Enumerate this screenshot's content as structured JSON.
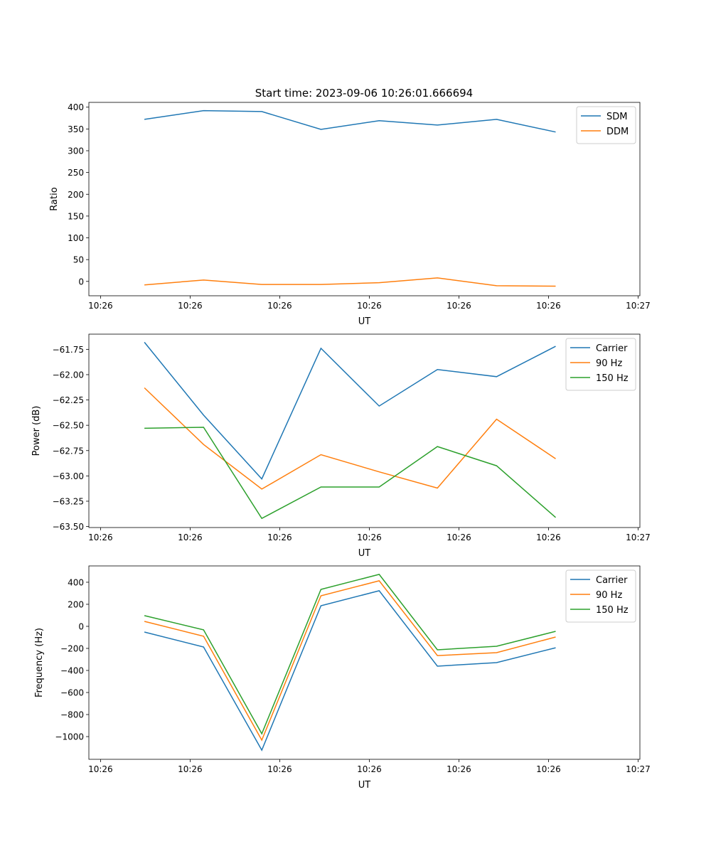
{
  "figure_title": "Start time: 2023-09-06 10:26:01.666694",
  "colors": {
    "c0": "#1f77b4",
    "c1": "#ff7f0e",
    "c2": "#2ca02c"
  },
  "chart_data": [
    {
      "type": "line",
      "title": "Start time: 2023-09-06 10:26:01.666694",
      "xlabel": "UT",
      "ylabel": "Ratio",
      "x_unit": "seconds after 10:26:00",
      "x": [
        4.9,
        11.5,
        18.0,
        24.6,
        31.1,
        37.6,
        44.2,
        50.8
      ],
      "xlim": [
        -1.3,
        60.2
      ],
      "xticks": [
        0,
        10,
        20,
        30,
        40,
        50,
        60
      ],
      "xtick_labels": [
        "10:26",
        "10:26",
        "10:26",
        "10:26",
        "10:26",
        "10:26",
        "10:27"
      ],
      "ylim": [
        -33,
        411
      ],
      "yticks": [
        0,
        50,
        100,
        150,
        200,
        250,
        300,
        350,
        400
      ],
      "ytick_labels": [
        "0",
        "50",
        "100",
        "150",
        "200",
        "250",
        "300",
        "350",
        "400"
      ],
      "legend": "top-right",
      "grid": false,
      "series": [
        {
          "name": "SDM",
          "color": "#1f77b4",
          "values": [
            372,
            392,
            390,
            349,
            369,
            359,
            372,
            343
          ]
        },
        {
          "name": "DDM",
          "color": "#ff7f0e",
          "values": [
            -8,
            3,
            -7,
            -7,
            -3,
            8,
            -10,
            -11
          ]
        }
      ]
    },
    {
      "type": "line",
      "xlabel": "UT",
      "ylabel": "Power (dB)",
      "x_unit": "seconds after 10:26:00",
      "x": [
        4.9,
        11.5,
        18.0,
        24.6,
        31.1,
        37.6,
        44.2,
        50.8
      ],
      "xlim": [
        -1.3,
        60.2
      ],
      "xticks": [
        0,
        10,
        20,
        30,
        40,
        50,
        60
      ],
      "xtick_labels": [
        "10:26",
        "10:26",
        "10:26",
        "10:26",
        "10:26",
        "10:26",
        "10:27"
      ],
      "ylim": [
        -63.51,
        -61.6
      ],
      "yticks": [
        -63.5,
        -63.25,
        -63.0,
        -62.75,
        -62.5,
        -62.25,
        -62.0,
        -61.75
      ],
      "ytick_labels": [
        "−63.50",
        "−63.25",
        "−63.00",
        "−62.75",
        "−62.50",
        "−62.25",
        "−62.00",
        "−61.75"
      ],
      "legend": "top-right",
      "grid": false,
      "series": [
        {
          "name": "Carrier",
          "color": "#1f77b4",
          "values": [
            -61.68,
            -62.4,
            -63.03,
            -61.74,
            -62.31,
            -61.95,
            -62.02,
            -61.72
          ]
        },
        {
          "name": "90 Hz",
          "color": "#ff7f0e",
          "values": [
            -62.13,
            -62.69,
            -63.13,
            -62.79,
            -62.96,
            -63.12,
            -62.44,
            -62.83
          ]
        },
        {
          "name": "150 Hz",
          "color": "#2ca02c",
          "values": [
            -62.53,
            -62.52,
            -63.42,
            -63.11,
            -63.11,
            -62.71,
            -62.9,
            -63.41
          ]
        }
      ]
    },
    {
      "type": "line",
      "xlabel": "UT",
      "ylabel": "Frequency (Hz)",
      "x_unit": "seconds after 10:26:00",
      "x": [
        4.9,
        11.5,
        18.0,
        24.6,
        31.1,
        37.6,
        44.2,
        50.8
      ],
      "xlim": [
        -1.3,
        60.2
      ],
      "xticks": [
        0,
        10,
        20,
        30,
        40,
        50,
        60
      ],
      "xtick_labels": [
        "10:26",
        "10:26",
        "10:26",
        "10:26",
        "10:26",
        "10:26",
        "10:27"
      ],
      "ylim": [
        -1206,
        548
      ],
      "yticks": [
        -1000,
        -800,
        -600,
        -400,
        -200,
        0,
        200,
        400
      ],
      "ytick_labels": [
        "−1000",
        "−800",
        "−600",
        "−400",
        "−200",
        "0",
        "200",
        "400"
      ],
      "legend": "top-right",
      "grid": false,
      "series": [
        {
          "name": "Carrier",
          "color": "#1f77b4",
          "values": [
            -52,
            -187,
            -1123,
            187,
            323,
            -361,
            -329,
            -194
          ]
        },
        {
          "name": "90 Hz",
          "color": "#ff7f0e",
          "values": [
            45,
            -90,
            -1032,
            277,
            413,
            -265,
            -239,
            -97
          ]
        },
        {
          "name": "150 Hz",
          "color": "#2ca02c",
          "values": [
            97,
            -32,
            -974,
            335,
            471,
            -213,
            -181,
            -45
          ]
        }
      ]
    }
  ]
}
